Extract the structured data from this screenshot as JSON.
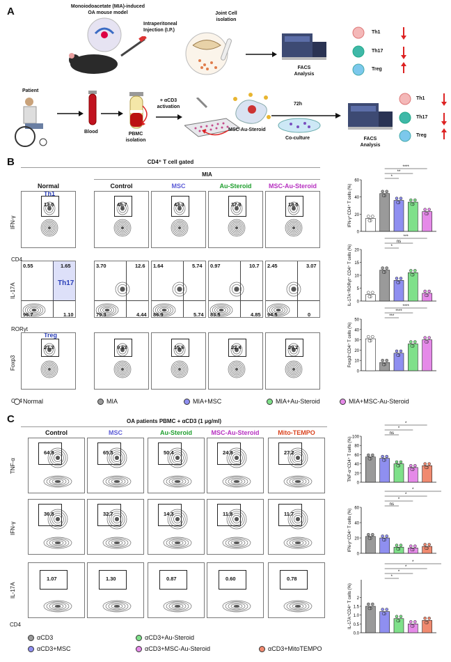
{
  "panelA": {
    "letter": "A",
    "mouse_model": "Monoiodoacetate (MIA)-induced\nOA mouse model",
    "injection": "Intraperitoneal\nInjection (I.P.)",
    "joint": "Joint Cell\nisolation",
    "facs": "FACS\nAnalysis",
    "patient": "Patient",
    "blood": "Blood",
    "pbmc": "PBMC\nisolation",
    "activation": "+ αCD3\nactivation",
    "msc_au": "MSC-Au-Steroid",
    "hours": "72h",
    "coculture": "Co-culture",
    "facs2": "FACS\nAnalysis",
    "cells": [
      "Th1",
      "Th17",
      "Treg"
    ]
  },
  "panelB": {
    "letter": "B",
    "header": "CD4⁺ T cell gated",
    "mia": "MIA",
    "columns": [
      "Normal",
      "Control",
      "MSC",
      "Au-Steroid",
      "MSC-Au-Steroid"
    ],
    "column_colors": [
      "#111111",
      "#111111",
      "#5b5bd6",
      "#1f9e2e",
      "#b62fc0"
    ],
    "row1": {
      "ylabel": "IFN-γ",
      "xlabel": "CD4",
      "gate_label": "Th1",
      "values": [
        "13.5",
        "45.7",
        "43.3",
        "37.8",
        "18.5"
      ]
    },
    "row2": {
      "ylabel": "IL-17A",
      "xlabel": "RORγt",
      "gate_label": "Th17",
      "quads": [
        [
          "0.55",
          "1.65",
          "96.7",
          "1.10"
        ],
        [
          "3.70",
          "12.6",
          "79.3",
          "4.44"
        ],
        [
          "1.64",
          "5.74",
          "86.9",
          "5.74"
        ],
        [
          "0.97",
          "10.7",
          "83.5",
          "4.85"
        ],
        [
          "2.45",
          "3.07",
          "94.5",
          "0"
        ]
      ]
    },
    "row3": {
      "ylabel": "Foxp3",
      "xlabel": "CD4",
      "gate_label": "Treg",
      "values": [
        "27.3",
        "9.63",
        "15.6",
        "22.4",
        "29.2"
      ]
    },
    "legend": [
      "Normal",
      "MIA",
      "MIA+MSC",
      "MIA+Au-Steroid",
      "MIA+MSC-Au-Steroid"
    ],
    "legend_colors": [
      "#ffffff",
      "#9a9a9a",
      "#8f8ff0",
      "#7fe08a",
      "#e58ae8"
    ]
  },
  "panelC": {
    "letter": "C",
    "header": "OA patients PBMC + αCD3 (1 μg/ml)",
    "columns": [
      "Control",
      "MSC",
      "Au-Steroid",
      "MSC-Au-Steroid",
      "Mito-TEMPO"
    ],
    "column_colors": [
      "#111111",
      "#5b5bd6",
      "#1f9e2e",
      "#b62fc0",
      "#d9431e"
    ],
    "xlabel": "CD4",
    "rows": [
      {
        "ylabel": "TNF-α",
        "values": [
          "64.9",
          "65.5",
          "50.4",
          "24.9",
          "27.2"
        ]
      },
      {
        "ylabel": "IFN-γ",
        "values": [
          "36.8",
          "32.7",
          "14.3",
          "11.9",
          "11.7"
        ]
      },
      {
        "ylabel": "IL-17A",
        "values": [
          "1.07",
          "1.30",
          "0.87",
          "0.60",
          "0.78"
        ]
      }
    ],
    "legend": [
      "αCD3",
      "αCD3+MSC",
      "αCD3+Au-Steroid",
      "αCD3+MSC-Au-Steroid",
      "αCD3+MitoTEMPO"
    ],
    "legend_colors": [
      "#9a9a9a",
      "#8f8ff0",
      "#7fe08a",
      "#e58ae8",
      "#f08a70"
    ]
  },
  "chart_data": [
    {
      "type": "bar",
      "panel": "B",
      "ylabel": "IFN-γ⁺CD4⁺ T cells (%)",
      "ylim": [
        0,
        60
      ],
      "yticks": [
        "0",
        "20",
        "40",
        "60"
      ],
      "categories": [
        "Normal",
        "MIA",
        "MIA+MSC",
        "MIA+Au-Steroid",
        "MIA+MSC-Au-Steroid"
      ],
      "values": [
        15,
        44,
        36,
        34,
        23
      ],
      "significance": [
        "*",
        "**",
        "****"
      ]
    },
    {
      "type": "bar",
      "panel": "B",
      "ylabel": "IL-17A⁺RORγt⁺\nCD4⁺ T cells (%)",
      "ylim": [
        0,
        20
      ],
      "yticks": [
        "0",
        "5",
        "10",
        "15",
        "20"
      ],
      "categories": [
        "Normal",
        "MIA",
        "MIA+MSC",
        "MIA+Au-Steroid",
        "MIA+MSC-Au-Steroid"
      ],
      "values": [
        2.5,
        12,
        8,
        11,
        3
      ],
      "significance": [
        "*",
        "ns",
        "***"
      ]
    },
    {
      "type": "bar",
      "panel": "B",
      "ylabel": "Foxp3⁺CD4⁺ T cells (%)",
      "ylim": [
        0,
        50
      ],
      "yticks": [
        "0",
        "10",
        "20",
        "30",
        "40",
        "50"
      ],
      "categories": [
        "Normal",
        "MIA",
        "MIA+MSC",
        "MIA+Au-Steroid",
        "MIA+MSC-Au-Steroid"
      ],
      "values": [
        31,
        8,
        17,
        26,
        30
      ],
      "significance": [
        "***",
        "****",
        "****"
      ]
    },
    {
      "type": "bar",
      "panel": "C",
      "ylabel": "TNF-α⁺CD4⁺ T cells (%)",
      "ylim": [
        0,
        100
      ],
      "yticks": [
        "0",
        "20",
        "40",
        "60",
        "80",
        "100"
      ],
      "categories": [
        "αCD3",
        "αCD3+MSC",
        "αCD3+Au-Steroid",
        "αCD3+MSC-Au-Steroid",
        "αCD3+MitoTEMPO"
      ],
      "values": [
        55,
        52,
        40,
        32,
        36
      ],
      "significance": [
        "ns",
        "*",
        "*"
      ]
    },
    {
      "type": "bar",
      "panel": "C",
      "ylabel": "IFN-γ⁺CD4⁺ T cells (%)",
      "ylim": [
        0,
        60
      ],
      "yticks": [
        "0",
        "20",
        "40",
        "60"
      ],
      "categories": [
        "αCD3",
        "αCD3+MSC",
        "αCD3+Au-Steroid",
        "αCD3+MSC-Au-Steroid",
        "αCD3+MitoTEMPO"
      ],
      "values": [
        22,
        20,
        8,
        7,
        9
      ],
      "significance": [
        "ns",
        "*",
        "*",
        "*"
      ]
    },
    {
      "type": "bar",
      "panel": "C",
      "ylabel": "IL-17A⁺CD4⁺ T cells (%)",
      "ylim": [
        0,
        3
      ],
      "yticks": [
        "0.0",
        "0.5",
        "1.0",
        "1.5",
        "2"
      ],
      "categories": [
        "αCD3",
        "αCD3+MSC",
        "αCD3+Au-Steroid",
        "αCD3+MSC-Au-Steroid",
        "αCD3+MitoTEMPO"
      ],
      "values": [
        1.5,
        1.2,
        0.8,
        0.5,
        0.7
      ],
      "significance": [
        "*",
        "*",
        "*",
        "*"
      ]
    }
  ]
}
